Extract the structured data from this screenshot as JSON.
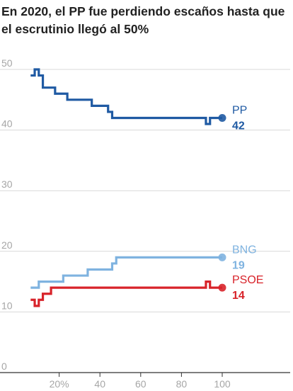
{
  "chart_data": {
    "type": "line",
    "title": "En 2020, el PP fue perdiendo escaños hasta que el escrutinio llegó al 50%",
    "xlabel": "",
    "ylabel": "",
    "xlim": [
      0,
      100
    ],
    "ylim": [
      0,
      50
    ],
    "x_ticks": [
      20,
      40,
      60,
      80,
      100
    ],
    "x_tick_labels": [
      "20%",
      "40",
      "60",
      "80",
      "100"
    ],
    "y_ticks": [
      0,
      10,
      20,
      30,
      40,
      50
    ],
    "y_tick_labels": [
      "0",
      "10",
      "20",
      "30",
      "40",
      "50"
    ],
    "grid": true,
    "line_shape": "step",
    "series": [
      {
        "name": "PP",
        "end_label": "42",
        "color": "#1f5aa3",
        "x": [
          6,
          8,
          10,
          12,
          18,
          24,
          30,
          36,
          40,
          44,
          46,
          70,
          92,
          94,
          96,
          100
        ],
        "y": [
          49,
          50,
          49,
          47,
          46,
          45,
          45,
          44,
          44,
          43,
          42,
          42,
          41,
          42,
          42,
          42
        ]
      },
      {
        "name": "BNG",
        "end_label": "19",
        "color": "#7fb3e0",
        "x": [
          6,
          10,
          16,
          22,
          30,
          34,
          40,
          46,
          48,
          56,
          80,
          100
        ],
        "y": [
          14,
          15,
          15,
          16,
          16,
          17,
          17,
          18,
          19,
          19,
          19,
          19
        ]
      },
      {
        "name": "PSOE",
        "end_label": "14",
        "color": "#d8232a",
        "x": [
          6,
          8,
          10,
          12,
          16,
          20,
          40,
          88,
          92,
          94,
          100
        ],
        "y": [
          12,
          11,
          12,
          13,
          14,
          14,
          14,
          14,
          15,
          14,
          14
        ]
      }
    ]
  }
}
